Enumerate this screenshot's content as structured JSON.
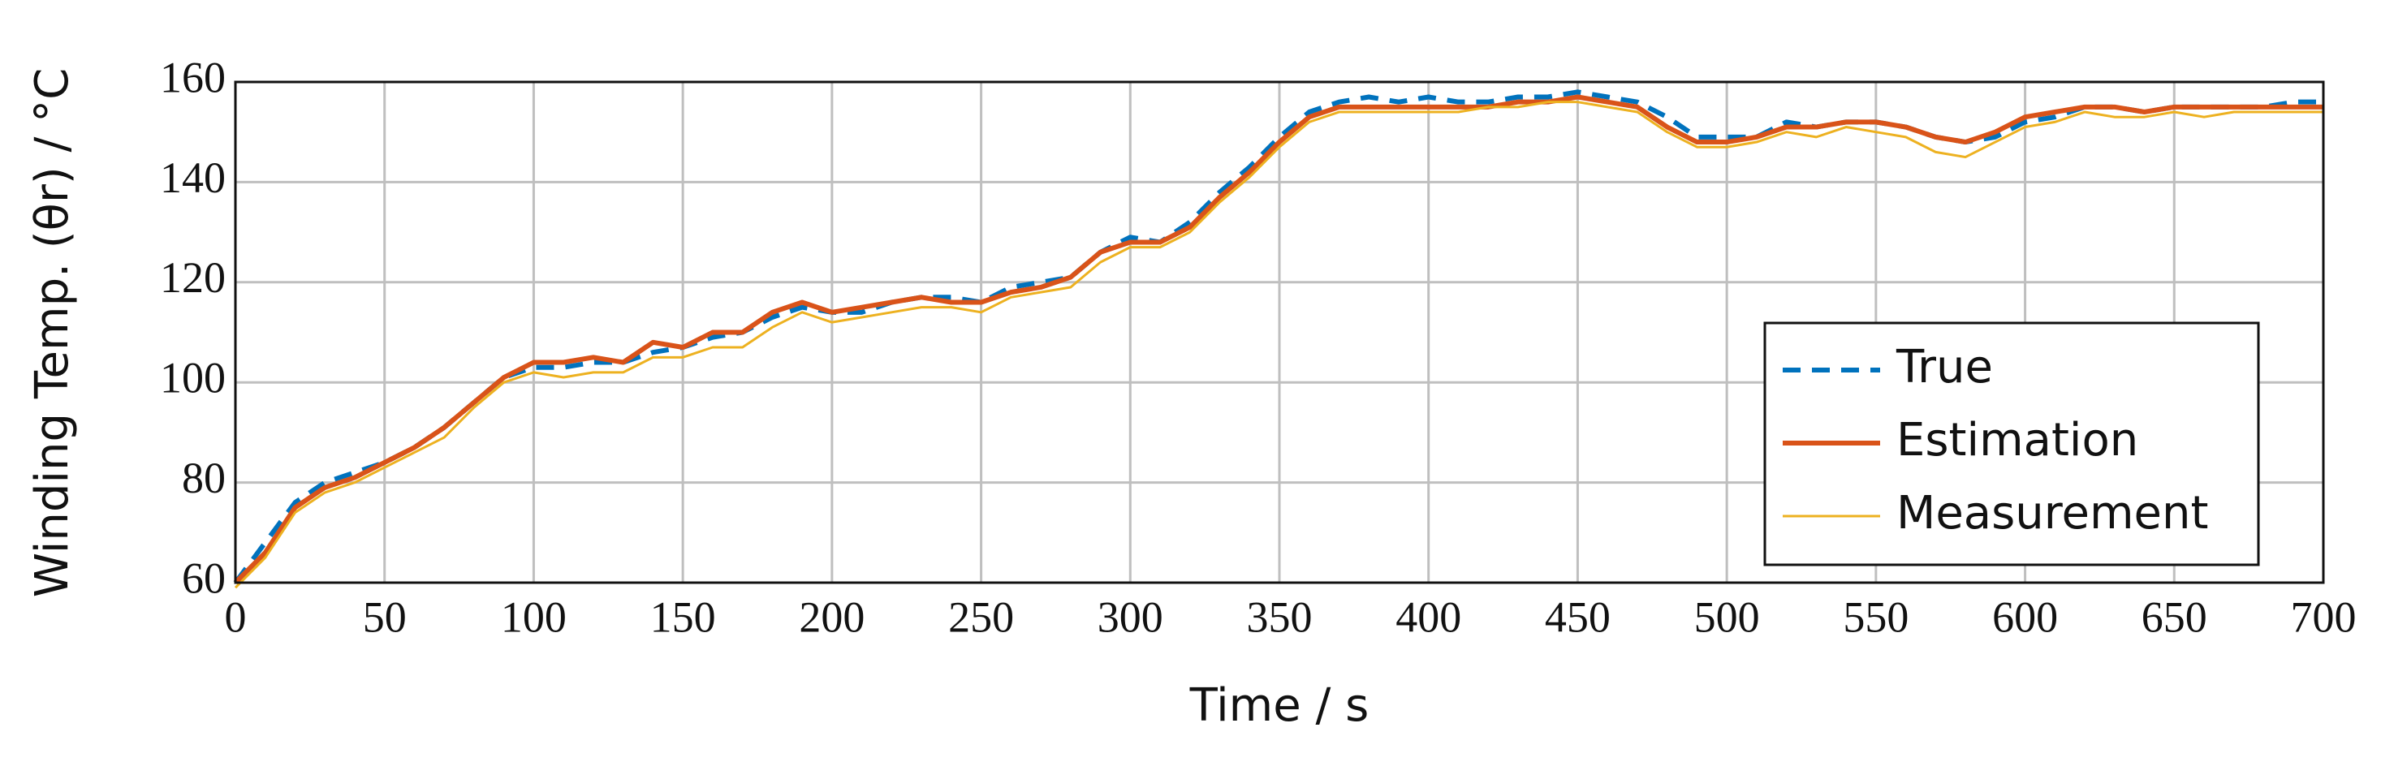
{
  "chart_data": {
    "type": "line",
    "x_label": "Time / s",
    "y_label": "Winding Temp. (θr) / °C",
    "x": [
      0,
      10,
      20,
      30,
      40,
      50,
      60,
      70,
      80,
      90,
      100,
      110,
      120,
      130,
      140,
      150,
      160,
      170,
      180,
      190,
      200,
      210,
      220,
      230,
      240,
      250,
      260,
      270,
      280,
      290,
      300,
      310,
      320,
      330,
      340,
      350,
      360,
      370,
      380,
      390,
      400,
      410,
      420,
      430,
      440,
      450,
      460,
      470,
      480,
      490,
      500,
      510,
      520,
      530,
      540,
      550,
      560,
      570,
      580,
      590,
      600,
      610,
      620,
      630,
      640,
      650,
      660,
      670,
      680,
      690,
      700
    ],
    "series": [
      {
        "name": "True",
        "color": "#0072bd",
        "dashed": true,
        "width": 6,
        "values": [
          60,
          68,
          76,
          80,
          82,
          84,
          87,
          91,
          96,
          101,
          103,
          103,
          104,
          104,
          106,
          107,
          109,
          110,
          113,
          115,
          114,
          114,
          116,
          117,
          117,
          116,
          119,
          120,
          121,
          126,
          129,
          128,
          132,
          138,
          143,
          149,
          154,
          156,
          157,
          156,
          157,
          156,
          156,
          157,
          157,
          158,
          157,
          156,
          153,
          149,
          149,
          149,
          152,
          151,
          152,
          152,
          151,
          149,
          148,
          149,
          152,
          153,
          155,
          155,
          154,
          155,
          155,
          155,
          155,
          156,
          156
        ]
      },
      {
        "name": "Estimation",
        "color": "#d95319",
        "dashed": false,
        "width": 6,
        "values": [
          60,
          66,
          75,
          79,
          81,
          84,
          87,
          91,
          96,
          101,
          104,
          104,
          105,
          104,
          108,
          107,
          110,
          110,
          114,
          116,
          114,
          115,
          116,
          117,
          116,
          116,
          118,
          119,
          121,
          126,
          128,
          128,
          131,
          137,
          142,
          148,
          153,
          155,
          155,
          155,
          155,
          155,
          155,
          156,
          156,
          157,
          156,
          155,
          151,
          148,
          148,
          149,
          151,
          151,
          152,
          152,
          151,
          149,
          148,
          150,
          153,
          154,
          155,
          155,
          154,
          155,
          155,
          155,
          155,
          155,
          155
        ]
      },
      {
        "name": "Measurement",
        "color": "#edb120",
        "dashed": false,
        "width": 3,
        "values": [
          59,
          65,
          74,
          78,
          80,
          83,
          86,
          89,
          95,
          100,
          102,
          101,
          102,
          102,
          105,
          105,
          107,
          107,
          111,
          114,
          112,
          113,
          114,
          115,
          115,
          114,
          117,
          118,
          119,
          124,
          127,
          127,
          130,
          136,
          141,
          147,
          152,
          154,
          154,
          154,
          154,
          154,
          155,
          155,
          156,
          156,
          155,
          154,
          150,
          147,
          147,
          148,
          150,
          149,
          151,
          150,
          149,
          146,
          145,
          148,
          151,
          152,
          154,
          153,
          153,
          154,
          153,
          154,
          154,
          154,
          154
        ]
      }
    ],
    "xlim": [
      0,
      700
    ],
    "xticks": [
      0,
      50,
      100,
      150,
      200,
      250,
      300,
      350,
      400,
      450,
      500,
      550,
      600,
      650,
      700
    ],
    "ylim": [
      60,
      160
    ],
    "yticks": [
      60,
      80,
      100,
      120,
      140,
      160
    ],
    "grid": true,
    "legend_position": "lower right"
  }
}
